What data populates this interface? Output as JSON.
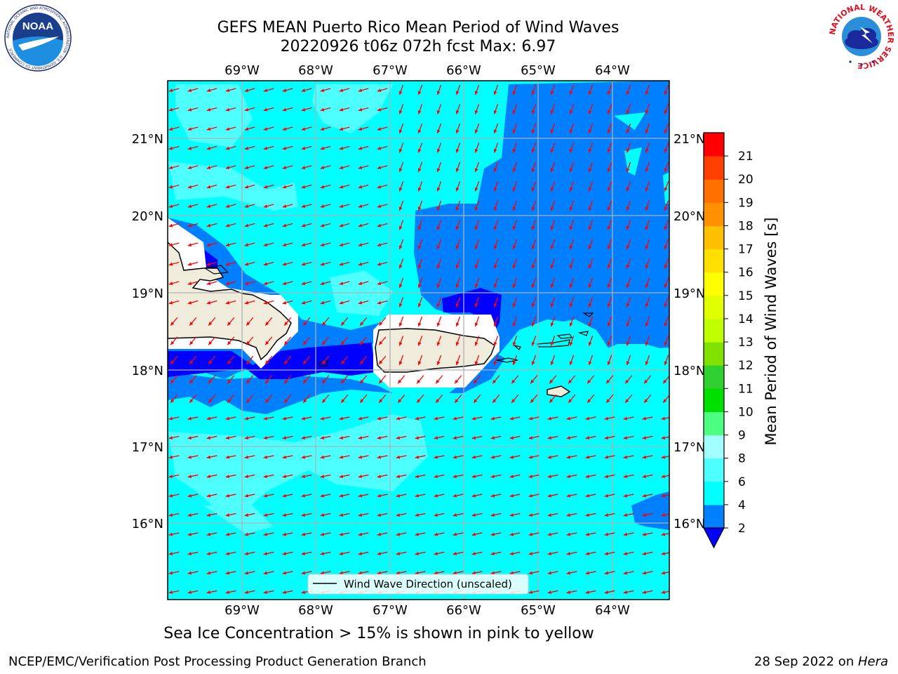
{
  "title": {
    "line1": "GEFS MEAN Puerto Rico Mean Period of Wind Waves",
    "line2": "20220926 t06z 072h fcst   Max: 6.97"
  },
  "logos": {
    "left": {
      "icon": "noaa-logo-icon",
      "text": "NOAA",
      "ring_text": "NATIONAL OCEANIC AND ATMOSPHERIC ADMINISTRATION · U.S. DEPARTMENT OF COMMERCE"
    },
    "right": {
      "icon": "nws-logo-icon",
      "ring_text": "NATIONAL WEATHER SERVICE"
    }
  },
  "map": {
    "lon_labels": [
      "69°W",
      "68°W",
      "67°W",
      "66°W",
      "65°W",
      "64°W"
    ],
    "lat_labels": [
      "21°N",
      "20°N",
      "19°N",
      "18°N",
      "17°N",
      "16°N"
    ],
    "legend": "Wind Wave Direction (unscaled)",
    "land_color": "#efecdc",
    "ocean_colors": {
      "2-4": "#0080ff",
      "4-6": "#00ffff",
      "6-8": "#4dffff",
      "under-2": "#0000ff"
    },
    "arrow_color": "#ff0000"
  },
  "colorbar": {
    "label": "Mean Period of Wind Waves [s]",
    "ticks": [
      "2",
      "4",
      "6",
      "8",
      "9",
      "10",
      "11",
      "12",
      "13",
      "14",
      "15",
      "16",
      "17",
      "18",
      "19",
      "20",
      "21"
    ],
    "colors": [
      "#0080ff",
      "#00ffff",
      "#4dffff",
      "#a0ffff",
      "#4dff80",
      "#00e000",
      "#30d030",
      "#80e000",
      "#c0ff00",
      "#e0ff00",
      "#ffff00",
      "#ffe000",
      "#ffc000",
      "#ff9000",
      "#ff7000",
      "#ff4000",
      "#ff0000"
    ],
    "under_color": "#0000ff"
  },
  "footnote": "Sea Ice Concentration > 15% is shown in pink to yellow",
  "credit_left": "NCEP/EMC/Verification Post Processing Product Generation Branch",
  "credit_right": {
    "date": "28 Sep 2022 on ",
    "machine": "Hera"
  }
}
